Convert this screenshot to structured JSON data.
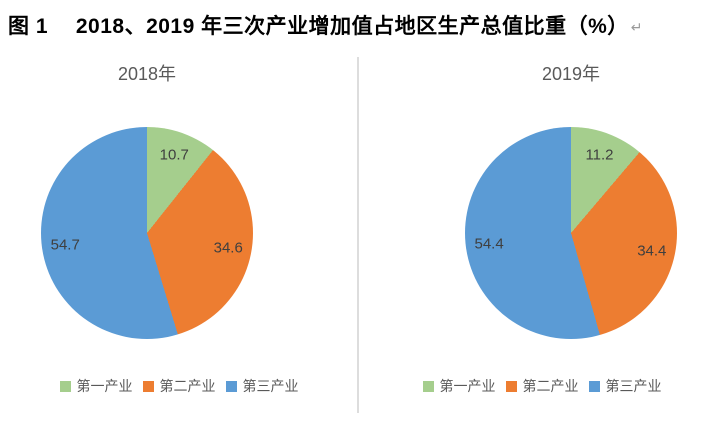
{
  "title": {
    "text": "图 1　 2018、2019 年三次产业增加值占地区生产总值比重（%）",
    "paragraph_mark": "↵"
  },
  "colors": {
    "primary_industry": "#A5CE8D",
    "secondary_industry": "#ED7D31",
    "tertiary_industry": "#5B9BD5",
    "divider": "#DDDDDD",
    "chart_title_text": "#595959",
    "data_label_text": "#3F3F3F",
    "legend_text": "#595959"
  },
  "legend": {
    "items": [
      {
        "label": "第一产业",
        "color": "#A5CE8D"
      },
      {
        "label": "第二产业",
        "color": "#ED7D31"
      },
      {
        "label": "第三产业",
        "color": "#5B9BD5"
      }
    ]
  },
  "chart_data": [
    {
      "type": "pie",
      "title": "2018年",
      "unit": "%",
      "categories": [
        "第一产业",
        "第二产业",
        "第三产业"
      ],
      "values": [
        10.7,
        34.6,
        54.7
      ],
      "colors": [
        "#A5CE8D",
        "#ED7D31",
        "#5B9BD5"
      ],
      "start_angle_deg": 0,
      "direction": "clockwise",
      "legend_position": "bottom"
    },
    {
      "type": "pie",
      "title": "2019年",
      "unit": "%",
      "categories": [
        "第一产业",
        "第二产业",
        "第三产业"
      ],
      "values": [
        11.2,
        34.4,
        54.4
      ],
      "colors": [
        "#A5CE8D",
        "#ED7D31",
        "#5B9BD5"
      ],
      "start_angle_deg": 0,
      "direction": "clockwise",
      "legend_position": "bottom"
    }
  ]
}
